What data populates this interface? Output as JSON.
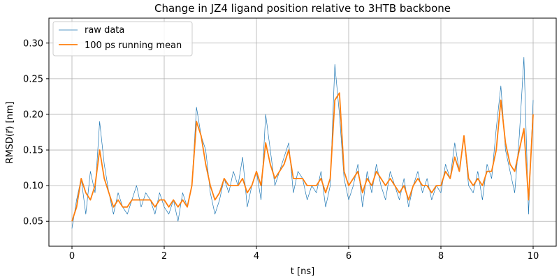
{
  "chart_data": {
    "type": "line",
    "title": "Change in JZ4 ligand position relative to 3HTB backbone",
    "xlabel": "t [ns]",
    "ylabel": "RMSD(r⃗) [nm]",
    "xlim": [
      -0.5,
      10.5
    ],
    "ylim": [
      0.015,
      0.335
    ],
    "x_ticks": [
      0,
      2,
      4,
      6,
      8,
      10
    ],
    "y_ticks": [
      0.05,
      0.1,
      0.15,
      0.2,
      0.25,
      0.3
    ],
    "x_tick_labels": [
      "0",
      "2",
      "4",
      "6",
      "8",
      "10"
    ],
    "y_tick_labels": [
      "0.05",
      "0.10",
      "0.15",
      "0.20",
      "0.25",
      "0.30"
    ],
    "grid": true,
    "legend_position": "top-left",
    "series": [
      {
        "name": "raw data",
        "color": "#1f77b4",
        "style": "thin",
        "x": [
          0.0,
          0.1,
          0.2,
          0.3,
          0.4,
          0.5,
          0.6,
          0.7,
          0.8,
          0.9,
          1.0,
          1.1,
          1.2,
          1.3,
          1.4,
          1.5,
          1.6,
          1.7,
          1.8,
          1.9,
          2.0,
          2.1,
          2.2,
          2.3,
          2.4,
          2.5,
          2.6,
          2.7,
          2.8,
          2.9,
          3.0,
          3.1,
          3.2,
          3.3,
          3.4,
          3.5,
          3.6,
          3.7,
          3.8,
          3.9,
          4.0,
          4.1,
          4.2,
          4.3,
          4.4,
          4.5,
          4.6,
          4.7,
          4.8,
          4.9,
          5.0,
          5.1,
          5.2,
          5.3,
          5.4,
          5.5,
          5.6,
          5.7,
          5.8,
          5.9,
          6.0,
          6.1,
          6.2,
          6.3,
          6.4,
          6.5,
          6.6,
          6.7,
          6.8,
          6.9,
          7.0,
          7.1,
          7.2,
          7.3,
          7.4,
          7.5,
          7.6,
          7.7,
          7.8,
          7.9,
          8.0,
          8.1,
          8.2,
          8.3,
          8.4,
          8.5,
          8.6,
          8.7,
          8.8,
          8.9,
          9.0,
          9.1,
          9.2,
          9.3,
          9.4,
          9.5,
          9.6,
          9.7,
          9.8,
          9.9,
          10.0
        ],
        "values": [
          0.04,
          0.08,
          0.11,
          0.06,
          0.12,
          0.09,
          0.19,
          0.13,
          0.09,
          0.06,
          0.09,
          0.07,
          0.06,
          0.08,
          0.1,
          0.07,
          0.09,
          0.08,
          0.06,
          0.09,
          0.07,
          0.06,
          0.08,
          0.05,
          0.09,
          0.07,
          0.1,
          0.21,
          0.17,
          0.15,
          0.09,
          0.06,
          0.08,
          0.11,
          0.09,
          0.12,
          0.1,
          0.14,
          0.07,
          0.1,
          0.12,
          0.08,
          0.2,
          0.15,
          0.1,
          0.12,
          0.14,
          0.16,
          0.09,
          0.12,
          0.11,
          0.08,
          0.1,
          0.09,
          0.12,
          0.07,
          0.1,
          0.27,
          0.2,
          0.11,
          0.08,
          0.1,
          0.13,
          0.07,
          0.12,
          0.09,
          0.13,
          0.1,
          0.08,
          0.12,
          0.1,
          0.08,
          0.11,
          0.07,
          0.1,
          0.12,
          0.09,
          0.11,
          0.08,
          0.1,
          0.09,
          0.13,
          0.11,
          0.16,
          0.12,
          0.17,
          0.1,
          0.09,
          0.12,
          0.08,
          0.13,
          0.11,
          0.18,
          0.24,
          0.15,
          0.12,
          0.09,
          0.17,
          0.28,
          0.06,
          0.22
        ]
      },
      {
        "name": "100 ps running mean",
        "color": "#ff7f0e",
        "style": "thick",
        "x": [
          0.0,
          0.1,
          0.2,
          0.3,
          0.4,
          0.5,
          0.6,
          0.7,
          0.8,
          0.9,
          1.0,
          1.1,
          1.2,
          1.3,
          1.4,
          1.5,
          1.6,
          1.7,
          1.8,
          1.9,
          2.0,
          2.1,
          2.2,
          2.3,
          2.4,
          2.5,
          2.6,
          2.7,
          2.8,
          2.9,
          3.0,
          3.1,
          3.2,
          3.3,
          3.4,
          3.5,
          3.6,
          3.7,
          3.8,
          3.9,
          4.0,
          4.1,
          4.2,
          4.3,
          4.4,
          4.5,
          4.6,
          4.7,
          4.8,
          4.9,
          5.0,
          5.1,
          5.2,
          5.3,
          5.4,
          5.5,
          5.6,
          5.7,
          5.8,
          5.9,
          6.0,
          6.1,
          6.2,
          6.3,
          6.4,
          6.5,
          6.6,
          6.7,
          6.8,
          6.9,
          7.0,
          7.1,
          7.2,
          7.3,
          7.4,
          7.5,
          7.6,
          7.7,
          7.8,
          7.9,
          8.0,
          8.1,
          8.2,
          8.3,
          8.4,
          8.5,
          8.6,
          8.7,
          8.8,
          8.9,
          9.0,
          9.1,
          9.2,
          9.3,
          9.4,
          9.5,
          9.6,
          9.7,
          9.8,
          9.9,
          10.0
        ],
        "values": [
          0.05,
          0.07,
          0.11,
          0.09,
          0.08,
          0.1,
          0.15,
          0.11,
          0.09,
          0.07,
          0.08,
          0.07,
          0.07,
          0.08,
          0.08,
          0.08,
          0.08,
          0.08,
          0.07,
          0.08,
          0.08,
          0.07,
          0.08,
          0.07,
          0.08,
          0.07,
          0.1,
          0.19,
          0.17,
          0.13,
          0.1,
          0.08,
          0.09,
          0.11,
          0.1,
          0.1,
          0.1,
          0.11,
          0.09,
          0.1,
          0.12,
          0.1,
          0.16,
          0.13,
          0.11,
          0.12,
          0.13,
          0.15,
          0.11,
          0.11,
          0.11,
          0.1,
          0.1,
          0.1,
          0.11,
          0.09,
          0.11,
          0.22,
          0.23,
          0.12,
          0.1,
          0.11,
          0.12,
          0.09,
          0.11,
          0.1,
          0.12,
          0.11,
          0.1,
          0.11,
          0.1,
          0.09,
          0.1,
          0.08,
          0.1,
          0.11,
          0.1,
          0.1,
          0.09,
          0.1,
          0.1,
          0.12,
          0.11,
          0.14,
          0.12,
          0.17,
          0.11,
          0.1,
          0.11,
          0.1,
          0.12,
          0.12,
          0.15,
          0.22,
          0.16,
          0.13,
          0.12,
          0.15,
          0.18,
          0.08,
          0.2
        ]
      }
    ]
  }
}
